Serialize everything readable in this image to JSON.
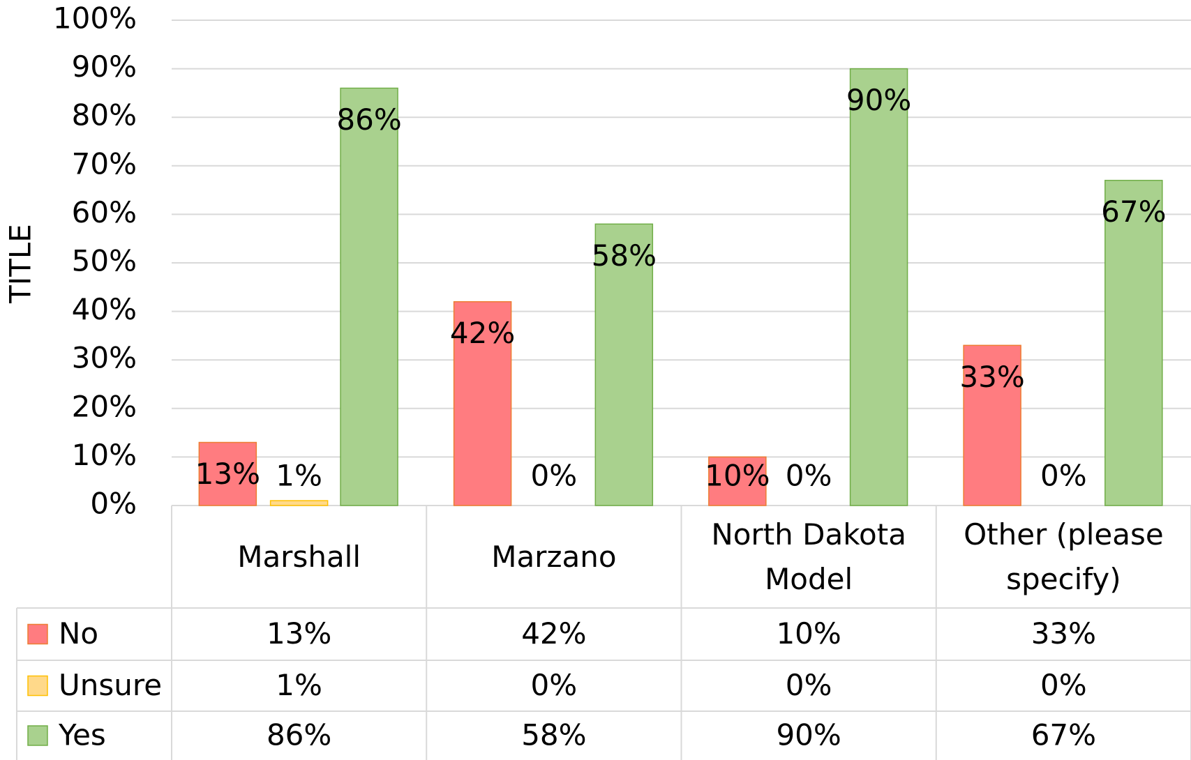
{
  "chart_data": {
    "type": "bar",
    "y_label": "TITLE",
    "categories": [
      "Marshall",
      "Marzano",
      "North Dakota Model",
      "Other (please specify)"
    ],
    "series": [
      {
        "name": "No",
        "color": "#ff7c80",
        "values": [
          13,
          42,
          10,
          33
        ],
        "value_labels": [
          "13%",
          "42%",
          "10%",
          "33%"
        ]
      },
      {
        "name": "Unsure",
        "color": "#ffd98a",
        "values": [
          1,
          0,
          0,
          0
        ],
        "value_labels": [
          "1%",
          "0%",
          "0%",
          "0%"
        ]
      },
      {
        "name": "Yes",
        "color": "#a9d18e",
        "values": [
          86,
          58,
          90,
          67
        ],
        "value_labels": [
          "86%",
          "58%",
          "90%",
          "67%"
        ]
      }
    ],
    "ylim": [
      0,
      100
    ],
    "yticks": [
      {
        "value": 0,
        "label": "0%"
      },
      {
        "value": 10,
        "label": "10%"
      },
      {
        "value": 20,
        "label": "20%"
      },
      {
        "value": 30,
        "label": "30%"
      },
      {
        "value": 40,
        "label": "40%"
      },
      {
        "value": 50,
        "label": "50%"
      },
      {
        "value": 60,
        "label": "60%"
      },
      {
        "value": 70,
        "label": "70%"
      },
      {
        "value": 80,
        "label": "80%"
      },
      {
        "value": 90,
        "label": "90%"
      },
      {
        "value": 100,
        "label": "100%"
      }
    ],
    "grid": true,
    "data_table": true
  }
}
